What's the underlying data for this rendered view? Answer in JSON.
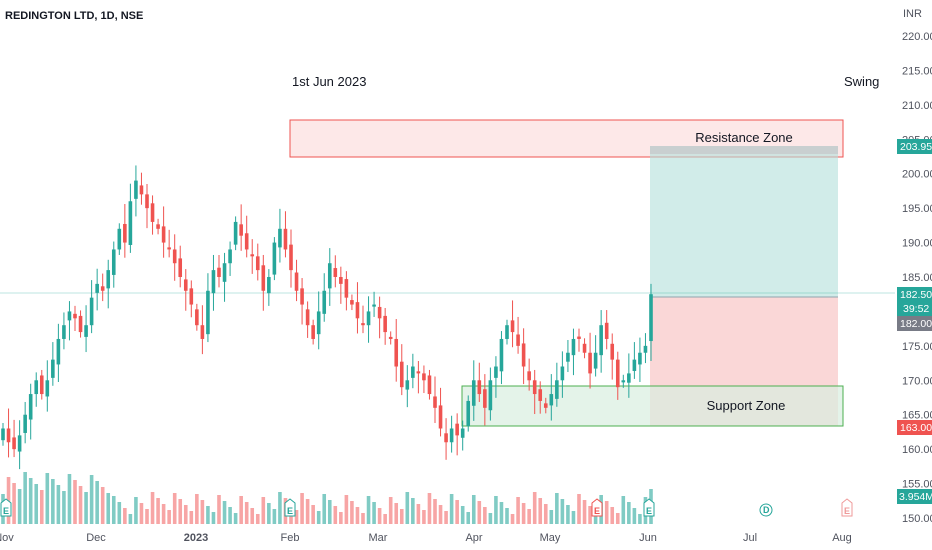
{
  "header": {
    "symbol_title": "REDINGTON LTD, 1D, NSE",
    "currency": "INR"
  },
  "annotations": {
    "date_note": "1st Jun 2023",
    "style_note": "Swing",
    "resistance_label": "Resistance Zone",
    "support_label": "Support Zone"
  },
  "tags": {
    "target": "203.95",
    "price": "182.50",
    "countdown": "39:52",
    "entry": "182.00",
    "stop": "163.00",
    "volume": "3.954M"
  },
  "colors": {
    "up": "#26a69a",
    "down": "#ef5350",
    "vol_up": "#80cbc4",
    "vol_down": "#f7a5a5",
    "resistance_fill": "#fde8e8",
    "resistance_stroke": "#ef5350",
    "support_fill": "#e8f5ee",
    "support_stroke": "#4caf50",
    "target_fill": "#b2dfdb",
    "stop_fill": "#f8c9c9"
  },
  "event_markers": [
    "E",
    "E",
    "E",
    "E",
    "D",
    "E"
  ],
  "chart_data": {
    "type": "candlestick",
    "ylim": [
      150,
      220
    ],
    "y_ticks": [
      "220.00",
      "215.00",
      "210.00",
      "205.00",
      "200.00",
      "195.00",
      "190.00",
      "185.00",
      "180.00",
      "175.00",
      "170.00",
      "165.00",
      "160.00",
      "155.00",
      "150.00"
    ],
    "x_ticks": [
      "Nov",
      "Dec",
      "2023",
      "Feb",
      "Mar",
      "Apr",
      "May",
      "Jun",
      "Jul",
      "Aug"
    ],
    "resistance_zone": {
      "low": 202.3,
      "high": 205.0
    },
    "support_zone": {
      "low": 163.0,
      "high": 169.0
    },
    "trade_position": {
      "entry": 182.0,
      "target": 203.95,
      "stop": 163.0
    },
    "last_price": 182.5,
    "last_volume": "3.954M",
    "closes": [
      163,
      161,
      160,
      162,
      165,
      168,
      170,
      168,
      170,
      173,
      176,
      178,
      180,
      179,
      177,
      178,
      182,
      184,
      183,
      186,
      189,
      192,
      190,
      196,
      199,
      197,
      195,
      193,
      192,
      190,
      189,
      187,
      185,
      183,
      181,
      178,
      176,
      183,
      186,
      185,
      187,
      189,
      193,
      191,
      189,
      188,
      186,
      183,
      185,
      190,
      192,
      189,
      186,
      183,
      181,
      178,
      176,
      180,
      183,
      187,
      185,
      184,
      182,
      181,
      179,
      178,
      180,
      181,
      179,
      177,
      176,
      172,
      169,
      170,
      172,
      171,
      170,
      168,
      166,
      163,
      161,
      163,
      162,
      163,
      167,
      170,
      168,
      166,
      170,
      172,
      176,
      178,
      177,
      175,
      172,
      170,
      168,
      167,
      166,
      168,
      170,
      172,
      174,
      176,
      176,
      174,
      171,
      174,
      178,
      176,
      173,
      169,
      170,
      171,
      173,
      174,
      175,
      182.5
    ]
  }
}
